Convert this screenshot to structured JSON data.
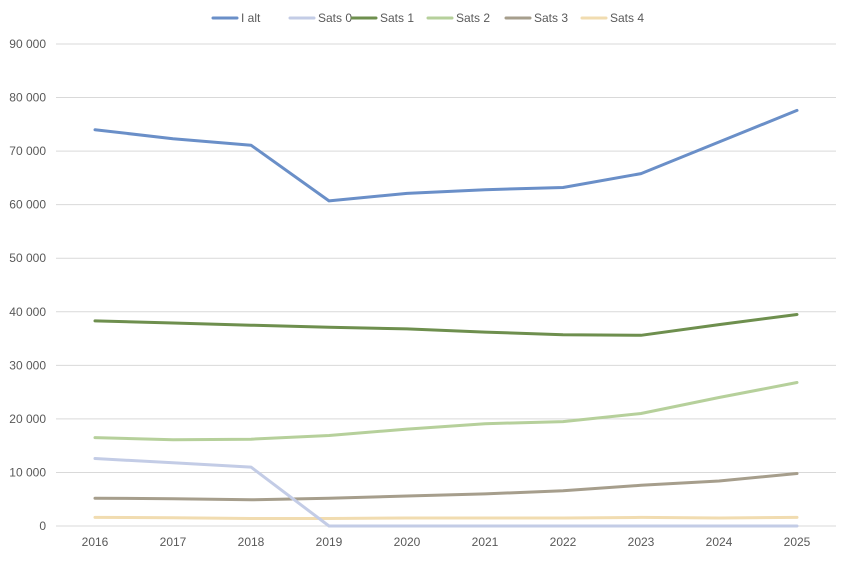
{
  "chart_data": {
    "type": "line",
    "title": "",
    "xlabel": "",
    "ylabel": "",
    "categories": [
      "2016",
      "2017",
      "2018",
      "2019",
      "2020",
      "2021",
      "2022",
      "2023",
      "2024",
      "2025"
    ],
    "ylim": [
      0,
      90000
    ],
    "y_ticks": [
      0,
      10000,
      20000,
      30000,
      40000,
      50000,
      60000,
      70000,
      80000,
      90000
    ],
    "y_tick_labels": [
      "0",
      "10 000",
      "20 000",
      "30 000",
      "40 000",
      "50 000",
      "60 000",
      "70 000",
      "80 000",
      "90 000"
    ],
    "grid": true,
    "legend_position": "top",
    "series": [
      {
        "name": "I alt",
        "color": "#6a8fc8",
        "values": [
          74000,
          72300,
          71100,
          60700,
          62100,
          62800,
          63200,
          65800,
          71700,
          77600
        ]
      },
      {
        "name": "Sats 0",
        "color": "#c3cce6",
        "values": [
          12600,
          11800,
          11000,
          0,
          0,
          0,
          0,
          0,
          0,
          0
        ]
      },
      {
        "name": "Sats 1",
        "color": "#6e8f4e",
        "values": [
          38300,
          37900,
          37500,
          37100,
          36800,
          36200,
          35700,
          35600,
          37600,
          39500
        ]
      },
      {
        "name": "Sats 2",
        "color": "#b6d09b",
        "values": [
          16500,
          16100,
          16200,
          16900,
          18100,
          19100,
          19500,
          21000,
          24000,
          26800
        ]
      },
      {
        "name": "Sats 3",
        "color": "#a69e8c",
        "values": [
          5200,
          5100,
          4900,
          5200,
          5600,
          6000,
          6600,
          7600,
          8400,
          9800
        ]
      },
      {
        "name": "Sats 4",
        "color": "#f1dcb0",
        "values": [
          1600,
          1550,
          1400,
          1400,
          1500,
          1500,
          1500,
          1600,
          1500,
          1600
        ]
      }
    ]
  }
}
